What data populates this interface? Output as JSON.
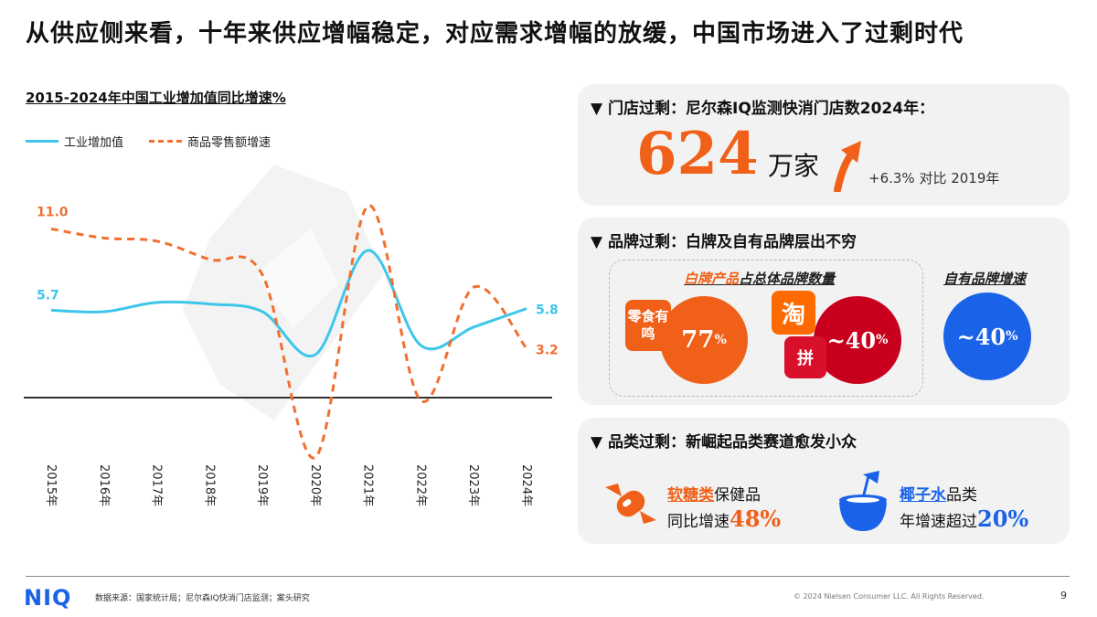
{
  "title": "从供应侧来看，十年来供应增幅稳定，对应需求增幅的放缓，中国市场进入了过剩时代",
  "chart": {
    "title": "2015-2024年中国工业增加值同比增速%",
    "legend_industrial": "工业增加值",
    "legend_retail": "商品零售额增速"
  },
  "chart_data": {
    "type": "line",
    "title": "2015-2024年中国工业增加值同比增速%",
    "categories": [
      "2015年",
      "2016年",
      "2017年",
      "2018年",
      "2019年",
      "2020年",
      "2021年",
      "2022年",
      "2023年",
      "2024年"
    ],
    "series": [
      {
        "name": "工业增加值",
        "values": [
          5.7,
          5.6,
          6.2,
          6.1,
          5.6,
          2.8,
          9.6,
          3.4,
          4.6,
          5.8
        ],
        "color": "#3ec6ea",
        "style": "solid"
      },
      {
        "name": "商品零售额增速",
        "values": [
          11.0,
          10.4,
          10.2,
          9.0,
          8.0,
          -3.9,
          12.5,
          -0.2,
          7.2,
          3.2
        ],
        "color": "#f07030",
        "style": "dashed"
      }
    ],
    "labels": {
      "first_industrial": "5.7",
      "first_retail": "11.0",
      "last_industrial": "5.8",
      "last_retail": "3.2"
    },
    "ylim": [
      -5,
      14
    ],
    "zero_line": true,
    "grid": false,
    "legend_position": "top-left"
  },
  "cards": {
    "stores": {
      "heading": "▼ 门店过剩：尼尔森IQ监测快消门店数2024年：",
      "count": "624",
      "unit": "万家",
      "growth": "+6.3% 对比 2019年"
    },
    "brands": {
      "heading": "▼ 品牌过剩：白牌及自有品牌层出不穷",
      "white_label_prefix": "白牌产品",
      "white_label_suffix": "占总体品牌数量",
      "own_brand_label": "自有品牌增速",
      "snack_icon_text": "零食有鸣",
      "snack_value": "77",
      "taobao_icon_text": "淘",
      "pdd_icon_text": "拼",
      "platform_value": "~40",
      "own_value": "~40",
      "percent": "%"
    },
    "categories": {
      "heading": "▼ 品类过剩：新崛起品类赛道愈发小众",
      "candy_highlight": "软糖类",
      "candy_suffix": "保健品",
      "candy_line2": "同比增速",
      "candy_value": "48%",
      "coconut_highlight": "椰子水",
      "coconut_suffix": "品类",
      "coconut_line2": "年增速超过",
      "coconut_value": "20%"
    }
  },
  "footer": {
    "logo": "NIQ",
    "source": "数据来源：国家统计局；尼尔森IQ快消门店监测；案头研究",
    "copyright": "© 2024 Nielsen Consumer LLC. All Rights Reserved.",
    "page": "9"
  },
  "colors": {
    "accent_orange": "#f06018",
    "accent_blue": "#1a63e8",
    "line_cyan": "#3ec6ea",
    "dash_orange": "#f07030"
  },
  "icons": [
    "uparrow-icon",
    "candy-icon",
    "coconut-icon",
    "triangle-down-icon"
  ]
}
